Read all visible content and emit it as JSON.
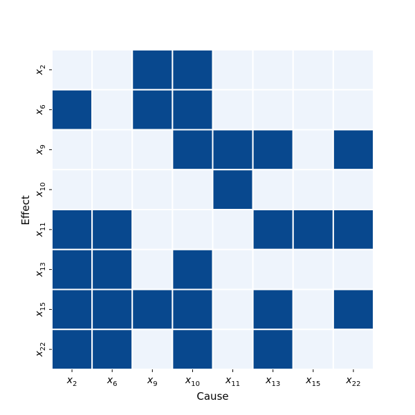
{
  "chart_data": {
    "type": "heatmap",
    "title": "",
    "xlabel": "Cause",
    "ylabel": "Effect",
    "x_categories": [
      {
        "base": "x",
        "sub": "2"
      },
      {
        "base": "x",
        "sub": "6"
      },
      {
        "base": "x",
        "sub": "9"
      },
      {
        "base": "x",
        "sub": "10"
      },
      {
        "base": "x",
        "sub": "11"
      },
      {
        "base": "x",
        "sub": "13"
      },
      {
        "base": "x",
        "sub": "15"
      },
      {
        "base": "x",
        "sub": "22"
      }
    ],
    "y_categories": [
      {
        "base": "x",
        "sub": "2"
      },
      {
        "base": "x",
        "sub": "6"
      },
      {
        "base": "x",
        "sub": "9"
      },
      {
        "base": "x",
        "sub": "10"
      },
      {
        "base": "x",
        "sub": "11"
      },
      {
        "base": "x",
        "sub": "13"
      },
      {
        "base": "x",
        "sub": "15"
      },
      {
        "base": "x",
        "sub": "22"
      }
    ],
    "values": [
      [
        0,
        0,
        1,
        1,
        0,
        0,
        0,
        0
      ],
      [
        1,
        0,
        1,
        1,
        0,
        0,
        0,
        0
      ],
      [
        0,
        0,
        0,
        1,
        1,
        1,
        0,
        1
      ],
      [
        0,
        0,
        0,
        0,
        1,
        0,
        0,
        0
      ],
      [
        1,
        1,
        0,
        0,
        0,
        1,
        1,
        1
      ],
      [
        1,
        1,
        0,
        1,
        0,
        0,
        0,
        0
      ],
      [
        1,
        1,
        1,
        1,
        0,
        1,
        0,
        1
      ],
      [
        1,
        1,
        0,
        1,
        0,
        1,
        0,
        0
      ]
    ],
    "colors": {
      "on": "#08488e",
      "off": "#eef4fc",
      "cell_border": "#ffffff"
    },
    "grid": false,
    "legend": "none"
  }
}
